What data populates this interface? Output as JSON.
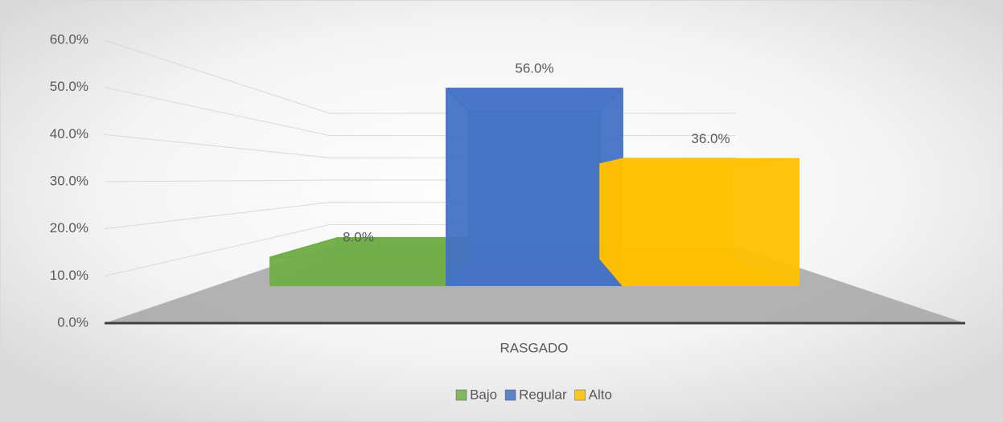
{
  "chart_data": {
    "type": "bar3d",
    "categories": [
      "RASGADO"
    ],
    "series": [
      {
        "name": "Bajo",
        "color": "#70ad47",
        "values": [
          8
        ],
        "value_labels": [
          "8.0%"
        ]
      },
      {
        "name": "Regular",
        "color": "#4472c4",
        "values": [
          56
        ],
        "value_labels": [
          "56.0%"
        ]
      },
      {
        "name": "Alto",
        "color": "#ffc000",
        "values": [
          36
        ],
        "value_labels": [
          "36.0%"
        ]
      }
    ],
    "ylim": [
      0,
      60
    ],
    "yticks": [
      {
        "value": 0,
        "label": "0.0%"
      },
      {
        "value": 10,
        "label": "10.0%"
      },
      {
        "value": 20,
        "label": "20.0%"
      },
      {
        "value": 30,
        "label": "30.0%"
      },
      {
        "value": 40,
        "label": "40.0%"
      },
      {
        "value": 50,
        "label": "50.0%"
      },
      {
        "value": 60,
        "label": "60.0%"
      }
    ],
    "grid": true,
    "legend": "bottom"
  }
}
